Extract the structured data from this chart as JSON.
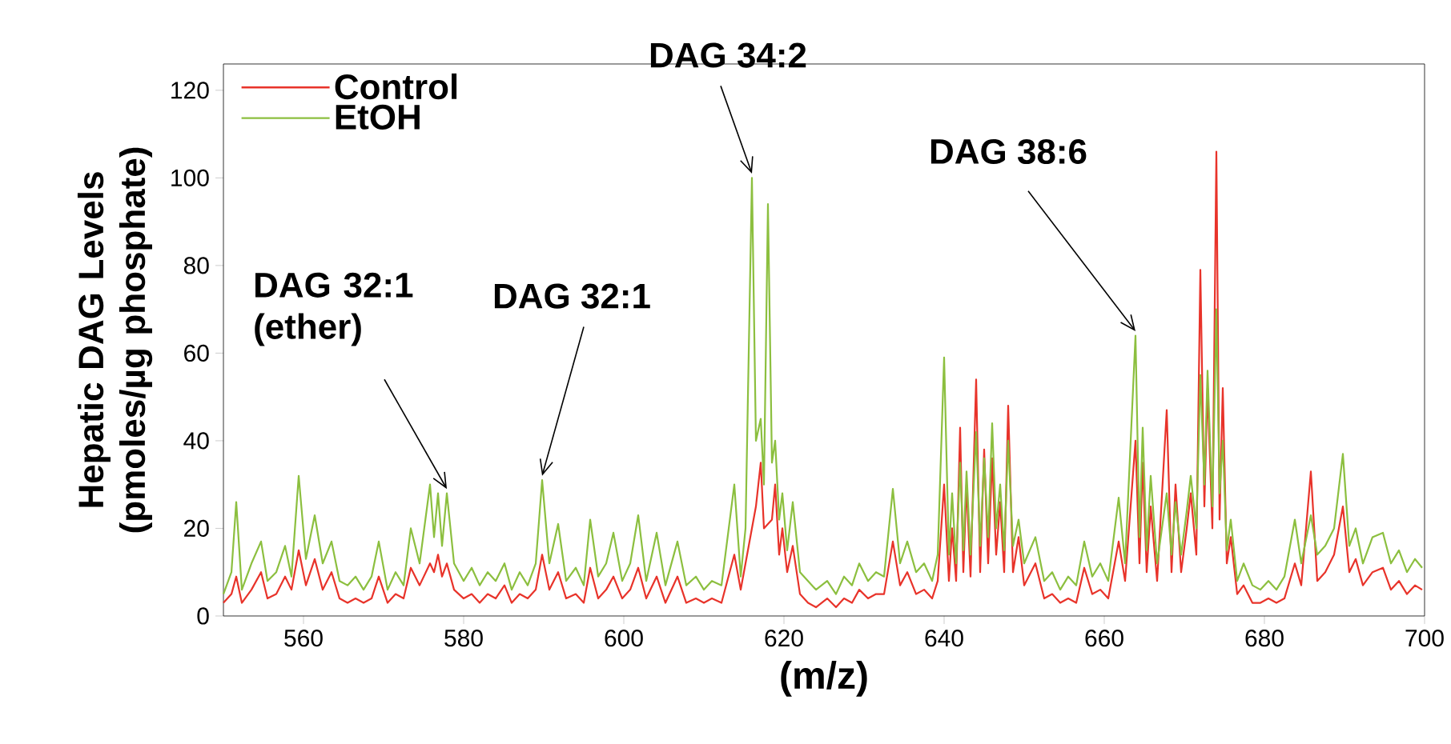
{
  "chart_data": {
    "type": "line",
    "xlabel": "(m/z)",
    "ylabel": "Hepatic DAG Levels (pmoles/µg phosphate)",
    "xlim": [
      550,
      700
    ],
    "xticks": [
      560,
      580,
      600,
      620,
      640,
      660,
      680,
      700
    ],
    "ylim": [
      0,
      126
    ],
    "yticks": [
      0,
      20,
      40,
      60,
      80,
      100,
      120
    ],
    "legend": "top left",
    "x": [
      550.0,
      551.0,
      551.6,
      552.3,
      553.5,
      554.7,
      555.5,
      556.6,
      557.7,
      558.5,
      559.4,
      560.3,
      561.4,
      562.4,
      563.5,
      564.5,
      565.5,
      566.5,
      567.5,
      568.5,
      569.4,
      570.5,
      571.5,
      572.5,
      573.4,
      574.5,
      575.8,
      576.3,
      576.8,
      577.3,
      577.9,
      578.8,
      580.0,
      581.0,
      582.0,
      583.0,
      584.0,
      585.1,
      586.0,
      587.0,
      588.0,
      589.0,
      589.8,
      590.7,
      591.8,
      592.8,
      594.0,
      595.0,
      595.8,
      596.8,
      597.8,
      598.7,
      599.8,
      600.8,
      601.8,
      602.8,
      604.1,
      605.2,
      606.7,
      607.8,
      609.0,
      610.0,
      611.0,
      612.2,
      613.8,
      614.6,
      615.2,
      616.0,
      616.5,
      617.1,
      617.5,
      618.0,
      618.5,
      618.9,
      619.4,
      619.8,
      620.4,
      621.1,
      622.0,
      623.0,
      624.0,
      625.4,
      626.5,
      627.5,
      628.5,
      629.4,
      630.5,
      631.5,
      632.5,
      633.6,
      634.5,
      635.4,
      636.5,
      637.5,
      638.5,
      639.2,
      640.0,
      640.6,
      641.0,
      641.5,
      642.0,
      642.4,
      642.8,
      643.3,
      644.0,
      644.5,
      645.0,
      645.5,
      646.0,
      646.5,
      647.0,
      647.5,
      648.0,
      648.6,
      649.3,
      650.0,
      651.4,
      652.5,
      653.5,
      654.5,
      655.5,
      656.5,
      657.5,
      658.5,
      659.5,
      660.5,
      661.8,
      662.6,
      663.9,
      664.4,
      664.8,
      665.3,
      665.8,
      666.6,
      667.8,
      668.4,
      668.9,
      669.6,
      670.3,
      670.8,
      671.5,
      672.0,
      672.5,
      672.9,
      673.5,
      674.0,
      674.4,
      674.8,
      675.3,
      675.8,
      676.6,
      677.4,
      678.5,
      679.5,
      680.5,
      681.5,
      682.5,
      683.8,
      684.6,
      685.8,
      686.6,
      687.6,
      688.7,
      689.8,
      690.6,
      691.4,
      692.3,
      693.5,
      694.8,
      695.8,
      696.8,
      697.8,
      698.8,
      699.7
    ],
    "series": [
      {
        "name": "Control",
        "color": "#e8332a",
        "values": [
          3,
          5,
          9,
          3,
          6,
          10,
          4,
          5,
          9,
          6,
          15,
          7,
          13,
          6,
          10,
          4,
          3,
          4,
          3,
          4,
          9,
          3,
          5,
          4,
          11,
          7,
          12,
          10,
          14,
          9,
          12,
          6,
          4,
          5,
          3,
          5,
          4,
          7,
          3,
          5,
          4,
          6,
          14,
          6,
          10,
          4,
          5,
          3,
          11,
          4,
          6,
          9,
          4,
          6,
          11,
          4,
          9,
          3,
          9,
          3,
          4,
          3,
          4,
          3,
          14,
          6,
          12,
          null,
          25,
          35,
          20,
          null,
          22,
          30,
          14,
          20,
          10,
          16,
          5,
          3,
          2,
          4,
          2,
          4,
          3,
          6,
          4,
          5,
          5,
          17,
          7,
          10,
          5,
          6,
          4,
          8,
          30,
          8,
          20,
          8,
          43,
          10,
          30,
          9,
          54,
          10,
          38,
          12,
          36,
          14,
          26,
          10,
          48,
          10,
          18,
          7,
          12,
          4,
          5,
          3,
          4,
          3,
          11,
          5,
          6,
          4,
          17,
          8,
          40,
          12,
          35,
          10,
          25,
          8,
          47,
          10,
          30,
          10,
          20,
          28,
          14,
          79,
          25,
          52,
          20,
          106,
          22,
          52,
          12,
          18,
          5,
          7,
          3,
          3,
          4,
          3,
          4,
          12,
          7,
          33,
          8,
          10,
          14,
          25,
          10,
          13,
          7,
          10,
          11,
          6,
          8,
          5,
          7,
          6
        ]
      },
      {
        "name": "EtOH",
        "color": "#8cbf3f",
        "values": [
          5,
          10,
          26,
          6,
          12,
          17,
          8,
          10,
          16,
          9,
          32,
          13,
          23,
          12,
          17,
          8,
          7,
          9,
          6,
          9,
          17,
          6,
          10,
          7,
          20,
          12,
          30,
          18,
          28,
          16,
          28,
          12,
          8,
          11,
          7,
          10,
          8,
          12,
          6,
          10,
          7,
          12,
          31,
          12,
          21,
          8,
          11,
          7,
          22,
          9,
          12,
          19,
          8,
          12,
          23,
          8,
          19,
          7,
          17,
          7,
          9,
          6,
          8,
          7,
          30,
          9,
          20,
          100,
          40,
          45,
          30,
          94,
          35,
          40,
          22,
          28,
          15,
          26,
          10,
          8,
          6,
          8,
          5,
          9,
          7,
          12,
          8,
          10,
          9,
          29,
          12,
          17,
          10,
          12,
          8,
          14,
          59,
          14,
          28,
          12,
          35,
          15,
          33,
          14,
          42,
          16,
          36,
          18,
          44,
          20,
          30,
          15,
          40,
          16,
          22,
          12,
          18,
          8,
          10,
          6,
          9,
          7,
          17,
          9,
          12,
          8,
          27,
          12,
          64,
          18,
          43,
          15,
          32,
          12,
          28,
          14,
          26,
          14,
          24,
          32,
          20,
          55,
          30,
          56,
          25,
          70,
          28,
          40,
          15,
          22,
          8,
          12,
          7,
          6,
          8,
          6,
          9,
          22,
          12,
          23,
          14,
          16,
          20,
          37,
          16,
          20,
          12,
          18,
          19,
          12,
          15,
          10,
          13,
          11
        ]
      }
    ],
    "annotations": [
      {
        "text": "DAG 32:1 (ether)",
        "x": 577.9,
        "y": 28
      },
      {
        "text": "DAG 32:1",
        "x": 589.8,
        "y": 31
      },
      {
        "text": "DAG 34:2",
        "x": 616.0,
        "y": 100
      },
      {
        "text": "DAG 38:6",
        "x": 663.9,
        "y": 64
      }
    ]
  }
}
